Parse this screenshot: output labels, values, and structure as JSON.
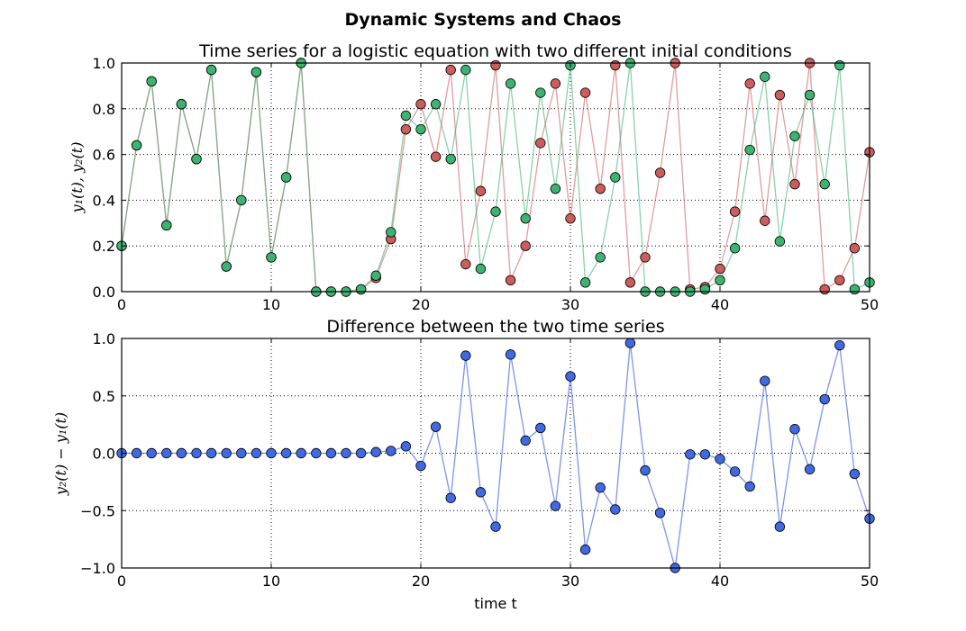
{
  "chart_data": [
    {
      "type": "line",
      "title": "Time series for a logistic equation with two different initial conditions",
      "xlabel": "",
      "ylabel": "y₁(t), y₂(t)",
      "xlim": [
        0,
        50
      ],
      "ylim": [
        0,
        1.0
      ],
      "xticks": [
        0,
        10,
        20,
        30,
        40,
        50
      ],
      "yticks": [
        0.0,
        0.2,
        0.4,
        0.6,
        0.8,
        1.0
      ],
      "xtick_labels": [
        "0",
        "10",
        "20",
        "30",
        "40",
        "50"
      ],
      "ytick_labels": [
        "0.0",
        "0.2",
        "0.4",
        "0.6",
        "0.8",
        "1.0"
      ],
      "grid": true,
      "x": [
        0,
        1,
        2,
        3,
        4,
        5,
        6,
        7,
        8,
        9,
        10,
        11,
        12,
        13,
        14,
        15,
        16,
        17,
        18,
        19,
        20,
        21,
        22,
        23,
        24,
        25,
        26,
        27,
        28,
        29,
        30,
        31,
        32,
        33,
        34,
        35,
        36,
        37,
        38,
        39,
        40,
        41,
        42,
        43,
        44,
        45,
        46,
        47,
        48,
        49,
        50
      ],
      "series": [
        {
          "name": "y1",
          "color": "#cd5c5c",
          "values": [
            0.2,
            0.64,
            0.92,
            0.29,
            0.82,
            0.58,
            0.97,
            0.11,
            0.4,
            0.96,
            0.15,
            0.5,
            1.0,
            0.0,
            0.0,
            0.0,
            0.01,
            0.06,
            0.23,
            0.71,
            0.82,
            0.59,
            0.97,
            0.12,
            0.44,
            0.99,
            0.05,
            0.2,
            0.65,
            0.91,
            0.32,
            0.87,
            0.45,
            0.99,
            0.04,
            0.15,
            0.52,
            1.0,
            0.01,
            0.02,
            0.1,
            0.35,
            0.91,
            0.31,
            0.86,
            0.47,
            1.0,
            0.01,
            0.05,
            0.19,
            0.61
          ]
        },
        {
          "name": "y2",
          "color": "#3cb371",
          "values": [
            0.2,
            0.64,
            0.92,
            0.29,
            0.82,
            0.58,
            0.97,
            0.11,
            0.4,
            0.96,
            0.15,
            0.5,
            1.0,
            0.0,
            0.0,
            0.0,
            0.01,
            0.07,
            0.26,
            0.77,
            0.71,
            0.82,
            0.58,
            0.97,
            0.1,
            0.35,
            0.91,
            0.32,
            0.87,
            0.45,
            0.99,
            0.04,
            0.15,
            0.5,
            1.0,
            0.0,
            0.0,
            0.0,
            0.0,
            0.01,
            0.05,
            0.19,
            0.62,
            0.94,
            0.22,
            0.68,
            0.86,
            0.47,
            0.99,
            0.01,
            0.04
          ]
        }
      ]
    },
    {
      "type": "line",
      "title": "Difference between the two time series",
      "xlabel": "time t",
      "ylabel": "y₂(t) − y₁(t)",
      "xlim": [
        0,
        50
      ],
      "ylim": [
        -1.0,
        1.0
      ],
      "xticks": [
        0,
        10,
        20,
        30,
        40,
        50
      ],
      "yticks": [
        -1.0,
        -0.5,
        0.0,
        0.5,
        1.0
      ],
      "xtick_labels": [
        "0",
        "10",
        "20",
        "30",
        "40",
        "50"
      ],
      "ytick_labels": [
        "−1.0",
        "−0.5",
        "0.0",
        "0.5",
        "1.0"
      ],
      "grid": true,
      "x": [
        0,
        1,
        2,
        3,
        4,
        5,
        6,
        7,
        8,
        9,
        10,
        11,
        12,
        13,
        14,
        15,
        16,
        17,
        18,
        19,
        20,
        21,
        22,
        23,
        24,
        25,
        26,
        27,
        28,
        29,
        30,
        31,
        32,
        33,
        34,
        35,
        36,
        37,
        38,
        39,
        40,
        41,
        42,
        43,
        44,
        45,
        46,
        47,
        48,
        49,
        50
      ],
      "series": [
        {
          "name": "difference",
          "color": "#4169e1",
          "values": [
            0,
            0,
            0,
            0,
            0,
            0,
            0,
            0,
            0,
            0,
            0,
            0,
            0,
            0,
            0,
            0,
            0,
            0.01,
            0.02,
            0.06,
            -0.11,
            0.23,
            -0.39,
            0.85,
            -0.34,
            -0.64,
            0.86,
            0.11,
            0.22,
            -0.46,
            0.67,
            -0.84,
            -0.3,
            -0.49,
            0.96,
            -0.15,
            -0.52,
            -1.0,
            -0.01,
            -0.01,
            -0.05,
            -0.16,
            -0.29,
            0.63,
            -0.64,
            0.21,
            -0.14,
            0.47,
            0.94,
            -0.18,
            -0.57
          ]
        }
      ]
    }
  ],
  "figure": {
    "suptitle": "Dynamic Systems and Chaos"
  }
}
